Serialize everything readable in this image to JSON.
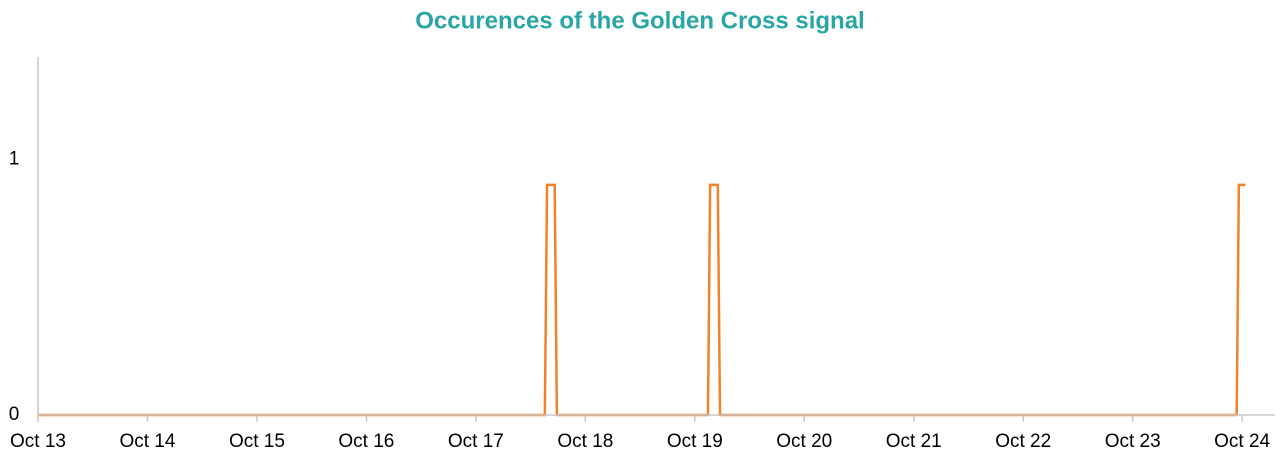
{
  "chart_data": {
    "type": "line",
    "title": "Occurences of the Golden Cross signal",
    "x": [
      13,
      17.63,
      17.65,
      17.72,
      17.74,
      19.12,
      19.14,
      19.21,
      19.23,
      23.95,
      23.97,
      24.03
    ],
    "series": [
      {
        "color": "#f0832a",
        "values": [
          0,
          0,
          0.9,
          0.9,
          0,
          0,
          0.9,
          0.9,
          0,
          0,
          0.9,
          0.9
        ]
      }
    ],
    "xlim": [
      13,
      24.3
    ],
    "xticks": [
      {
        "value": 13,
        "label": "Oct 13"
      },
      {
        "value": 14,
        "label": "Oct 14"
      },
      {
        "value": 15,
        "label": "Oct 15"
      },
      {
        "value": 16,
        "label": "Oct 16"
      },
      {
        "value": 17,
        "label": "Oct 17"
      },
      {
        "value": 18,
        "label": "Oct 18"
      },
      {
        "value": 19,
        "label": "Oct 19"
      },
      {
        "value": 20,
        "label": "Oct 20"
      },
      {
        "value": 21,
        "label": "Oct 21"
      },
      {
        "value": 22,
        "label": "Oct 22"
      },
      {
        "value": 23,
        "label": "Oct 23"
      },
      {
        "value": 24,
        "label": "Oct 24"
      }
    ],
    "ylim": [
      0,
      1.4
    ],
    "yticks": [
      0,
      1
    ]
  }
}
